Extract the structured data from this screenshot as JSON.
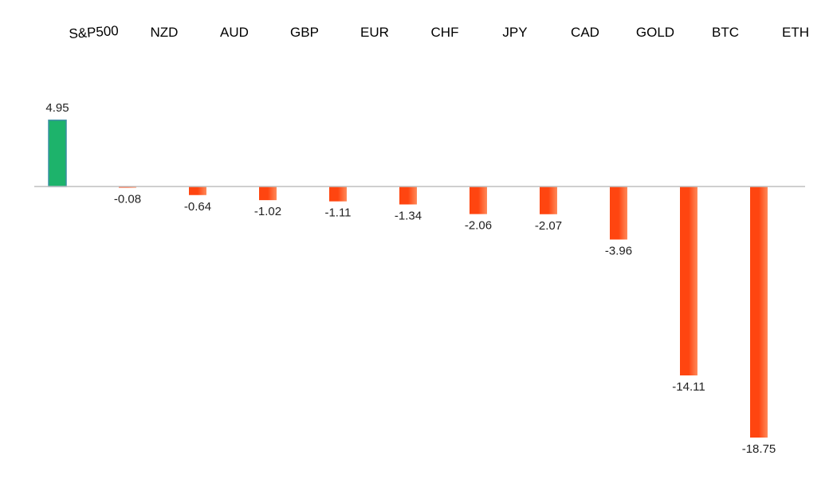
{
  "chart_data": {
    "type": "bar",
    "title": "",
    "xlabel": "",
    "ylabel": "",
    "categories": [
      "S&P500",
      "NZD",
      "AUD",
      "GBP",
      "EUR",
      "CHF",
      "JPY",
      "CAD",
      "GOLD",
      "BTC",
      "ETH"
    ],
    "values": [
      4.95,
      -0.08,
      -0.64,
      -1.02,
      -1.11,
      -1.34,
      -2.06,
      -2.07,
      -3.96,
      -14.11,
      -18.75
    ],
    "value_labels": [
      "4.95",
      "-0.08",
      "-0.64",
      "-1.02",
      "-1.11",
      "-1.34",
      "-2.06",
      "-2.07",
      "-3.96",
      "-14.11",
      "-18.75"
    ],
    "ylim": [
      -19,
      5
    ],
    "grid": false,
    "legend": "none",
    "category_labels_position": "top",
    "colors": {
      "positive": "#1db36b",
      "positive_edge": "#3a8fa3",
      "negative": "#ff4510",
      "negative_light": "#ff8a5a",
      "axis": "#bfbfbf"
    }
  }
}
